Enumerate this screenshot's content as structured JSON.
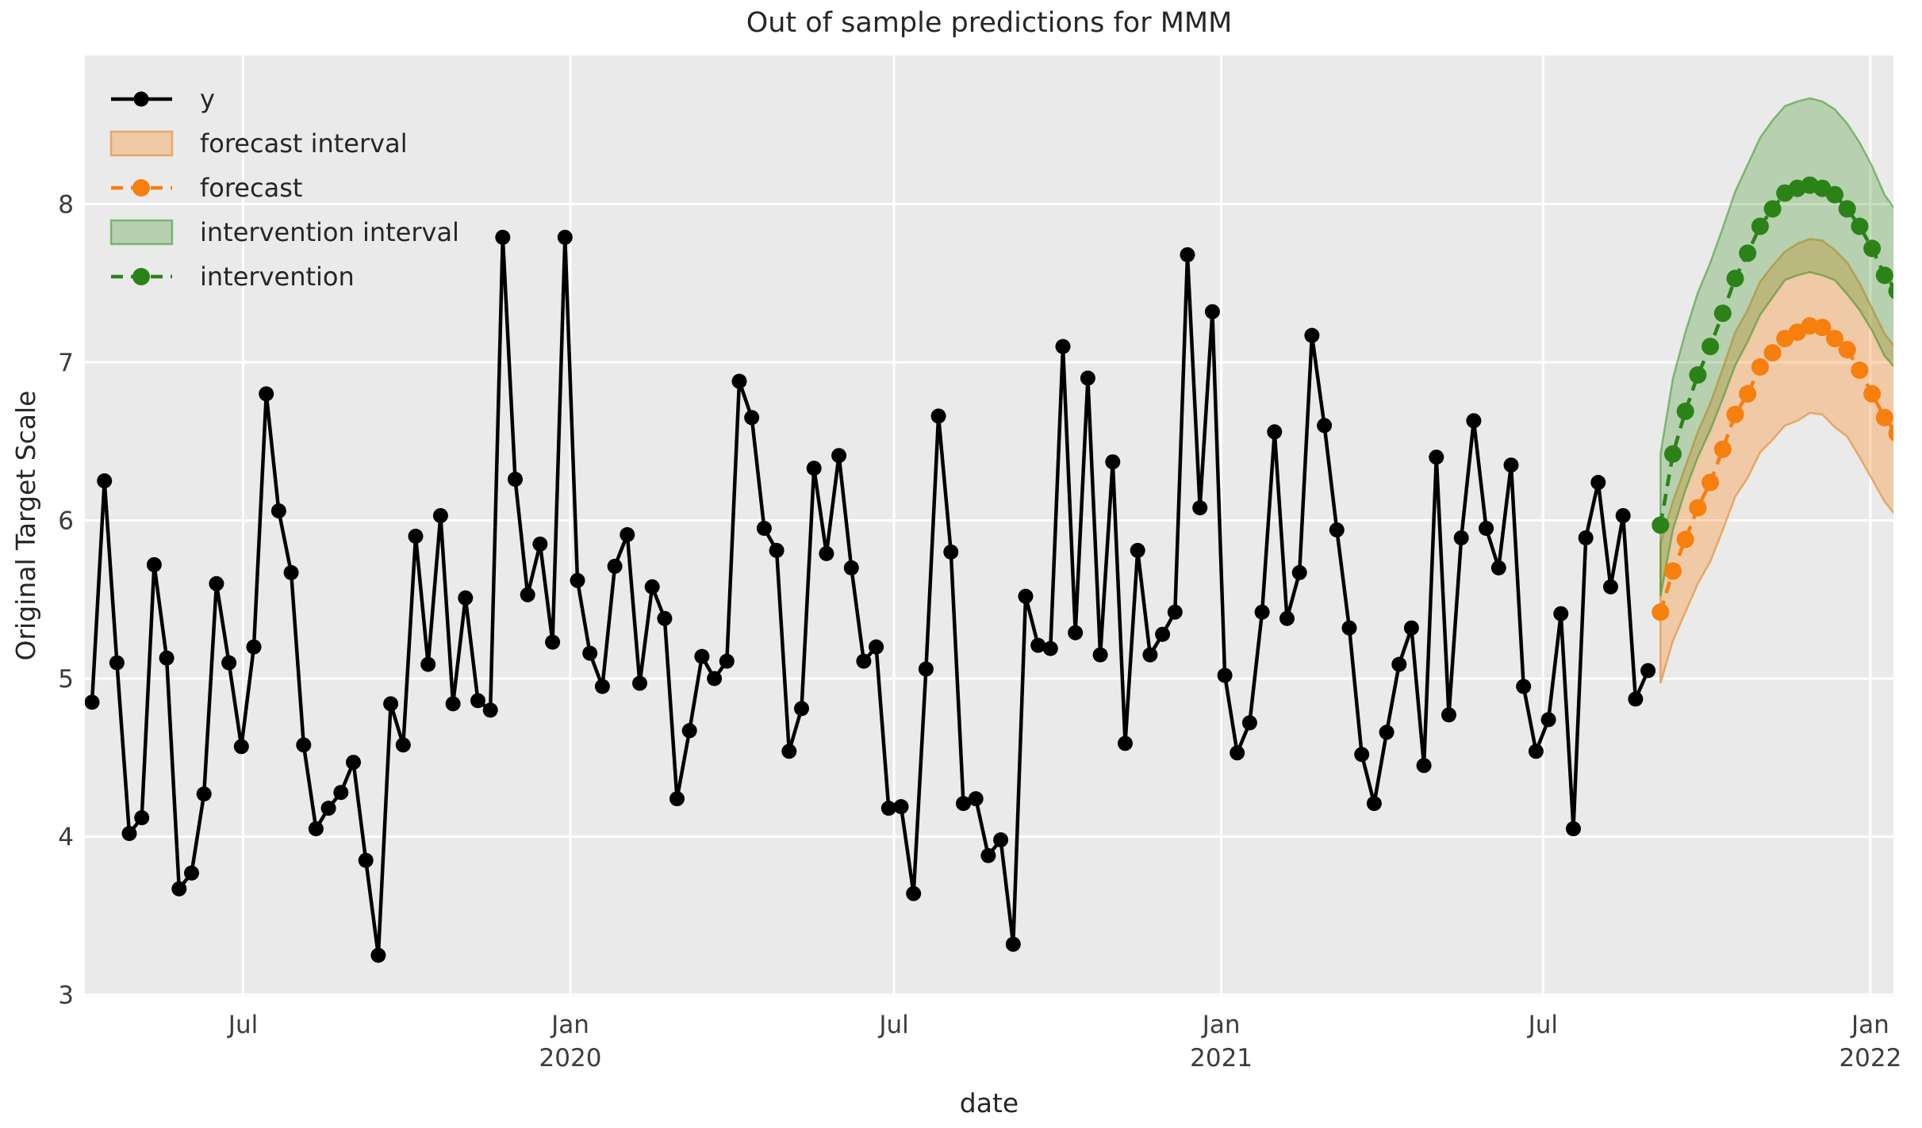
{
  "figure": {
    "background": "#ffffff",
    "plot_background": "#eaeaea",
    "grid_color": "#ffffff"
  },
  "chart_data": {
    "type": "line",
    "title": "Out of sample predictions for MMM",
    "xlabel": "date",
    "ylabel": "Original Target Scale",
    "grid": true,
    "legend_position": "upper left",
    "x_axis": {
      "range": [
        "2019-04-03",
        "2022-01-14"
      ],
      "ticks": [
        {
          "label": "Jul",
          "year": "",
          "date": "2019-07-01"
        },
        {
          "label": "Jan",
          "year": "2020",
          "date": "2020-01-01"
        },
        {
          "label": "Jul",
          "year": "",
          "date": "2020-07-01"
        },
        {
          "label": "Jan",
          "year": "2021",
          "date": "2021-01-01"
        },
        {
          "label": "Jul",
          "year": "",
          "date": "2021-07-01"
        },
        {
          "label": "Jan",
          "year": "2022",
          "date": "2022-01-01"
        }
      ]
    },
    "y_axis": {
      "range": [
        2.99,
        8.94
      ],
      "ticks": [
        3,
        4,
        5,
        6,
        7,
        8
      ]
    },
    "series": [
      {
        "name": "y",
        "color": "#000000",
        "line_style": "solid",
        "marker": "circle",
        "start_date": "2019-04-07",
        "freq_days": 7,
        "values": [
          4.85,
          6.25,
          5.1,
          4.02,
          4.12,
          5.72,
          5.13,
          3.67,
          3.77,
          4.27,
          5.6,
          5.1,
          4.57,
          5.2,
          6.8,
          6.06,
          5.67,
          4.58,
          4.05,
          4.18,
          4.28,
          4.47,
          3.85,
          3.25,
          4.84,
          4.58,
          5.9,
          5.09,
          6.03,
          4.84,
          5.51,
          4.86,
          4.8,
          7.79,
          6.26,
          5.53,
          5.85,
          5.23,
          7.79,
          5.62,
          5.16,
          4.95,
          5.71,
          5.91,
          4.97,
          5.58,
          5.38,
          4.24,
          4.67,
          5.14,
          5.0,
          5.11,
          6.88,
          6.65,
          5.95,
          5.81,
          4.54,
          4.81,
          6.33,
          5.79,
          6.41,
          5.7,
          5.11,
          5.2,
          4.18,
          4.19,
          3.64,
          5.06,
          6.66,
          5.8,
          4.21,
          4.24,
          3.88,
          3.98,
          3.32,
          5.52,
          5.21,
          5.19,
          7.1,
          5.29,
          6.9,
          5.15,
          6.37,
          4.59,
          5.81,
          5.15,
          5.28,
          5.42,
          7.68,
          6.08,
          7.32,
          5.02,
          4.53,
          4.72,
          5.42,
          6.56,
          5.38,
          5.67,
          7.17,
          6.6,
          5.94,
          5.32,
          4.52,
          4.21,
          4.66,
          5.09,
          5.32,
          4.45,
          6.4,
          4.77,
          5.89,
          6.63,
          5.95,
          5.7,
          6.35,
          4.95,
          4.54,
          4.74,
          5.41,
          4.05,
          5.89,
          6.24,
          5.58,
          6.03,
          4.87,
          5.05
        ]
      },
      {
        "name": "forecast",
        "color": "#f77f0e",
        "line_style": "dashed",
        "marker": "circle",
        "start_date": "2021-09-05",
        "freq_days": 7,
        "values": [
          5.42,
          5.68,
          5.88,
          6.08,
          6.24,
          6.45,
          6.67,
          6.8,
          6.97,
          7.06,
          7.15,
          7.19,
          7.23,
          7.22,
          7.15,
          7.08,
          6.95,
          6.8,
          6.65,
          6.55
        ],
        "interval_name": "forecast interval",
        "upper": [
          5.85,
          6.12,
          6.34,
          6.56,
          6.74,
          6.96,
          7.19,
          7.33,
          7.51,
          7.61,
          7.7,
          7.75,
          7.78,
          7.77,
          7.71,
          7.63,
          7.5,
          7.34,
          7.18,
          7.08
        ],
        "lower": [
          4.97,
          5.24,
          5.42,
          5.6,
          5.74,
          5.94,
          6.15,
          6.27,
          6.43,
          6.51,
          6.6,
          6.63,
          6.68,
          6.67,
          6.59,
          6.53,
          6.4,
          6.26,
          6.12,
          6.02
        ],
        "band_fill": "rgba(255,127,14,0.30)",
        "band_edge": "rgba(224,152,70,0.75)"
      },
      {
        "name": "intervention",
        "color": "#2b8318",
        "line_style": "dashed",
        "marker": "circle",
        "start_date": "2021-09-05",
        "freq_days": 7,
        "values": [
          5.97,
          6.42,
          6.69,
          6.92,
          7.1,
          7.31,
          7.53,
          7.69,
          7.86,
          7.97,
          8.07,
          8.1,
          8.12,
          8.1,
          8.06,
          7.97,
          7.86,
          7.72,
          7.55,
          7.45
        ],
        "interval_name": "intervention interval",
        "upper": [
          6.42,
          6.9,
          7.19,
          7.44,
          7.63,
          7.85,
          8.08,
          8.25,
          8.42,
          8.53,
          8.62,
          8.65,
          8.67,
          8.65,
          8.6,
          8.51,
          8.39,
          8.24,
          8.06,
          7.95
        ],
        "lower": [
          5.52,
          5.94,
          6.19,
          6.4,
          6.57,
          6.77,
          6.98,
          7.13,
          7.3,
          7.41,
          7.52,
          7.55,
          7.57,
          7.55,
          7.52,
          7.43,
          7.33,
          7.2,
          7.04,
          6.95
        ],
        "band_fill": "rgba(46,139,24,0.27)",
        "band_edge": "rgba(46,139,24,0.50)"
      }
    ],
    "legend": [
      {
        "label": "y",
        "type": "line-marker",
        "color": "#000000",
        "dashed": false
      },
      {
        "label": "forecast interval",
        "type": "patch",
        "fill": "rgba(255,127,14,0.30)",
        "edge": "rgba(224,152,70,0.75)"
      },
      {
        "label": "forecast",
        "type": "line-marker",
        "color": "#f77f0e",
        "dashed": true
      },
      {
        "label": "intervention interval",
        "type": "patch",
        "fill": "rgba(46,139,24,0.27)",
        "edge": "rgba(46,139,24,0.50)"
      },
      {
        "label": "intervention",
        "type": "line-marker",
        "color": "#2b8318",
        "dashed": true
      }
    ]
  }
}
